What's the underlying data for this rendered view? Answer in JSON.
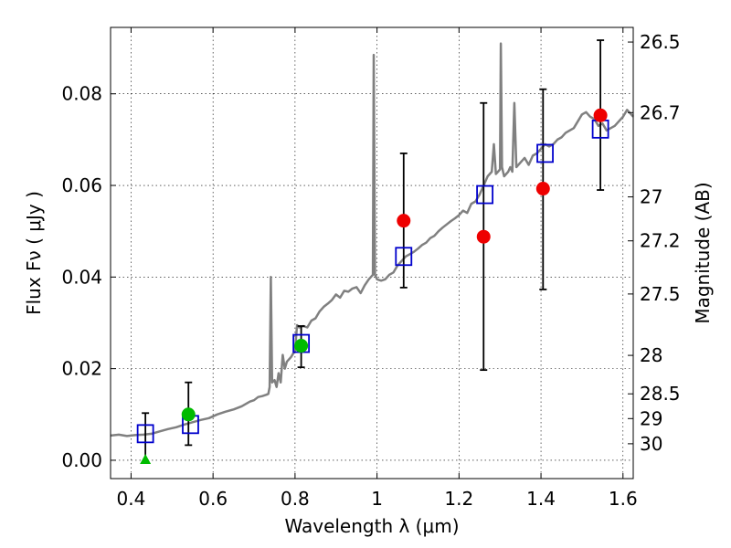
{
  "chart_data": {
    "type": "scatter",
    "xlabel": "Wavelength  λ (μm)",
    "ylabel": "Flux  Fν  ( μJy )",
    "ylabel_right": "Magnitude (AB)",
    "xlim": [
      0.35,
      1.625
    ],
    "ylim": [
      -0.004,
      0.0945
    ],
    "x_ticks": [
      0.4,
      0.6,
      0.8,
      1.0,
      1.2,
      1.4,
      1.6
    ],
    "x_tick_labels": [
      "0.4",
      "0.6",
      "0.8",
      "1",
      "1.2",
      "1.4",
      "1.6"
    ],
    "y_ticks": [
      0.0,
      0.02,
      0.04,
      0.06,
      0.08
    ],
    "y_tick_labels": [
      "0.00",
      "0.02",
      "0.04",
      "0.06",
      "0.08"
    ],
    "right_ticks": [
      {
        "label": "26.5",
        "flux": 0.0913
      },
      {
        "label": "26.7",
        "flux": 0.0759
      },
      {
        "label": "27",
        "flux": 0.0575
      },
      {
        "label": "27.2",
        "flux": 0.0479
      },
      {
        "label": "27.5",
        "flux": 0.0363
      },
      {
        "label": "28",
        "flux": 0.0229
      },
      {
        "label": "28.5",
        "flux": 0.0145
      },
      {
        "label": "29",
        "flux": 0.0091
      },
      {
        "label": "30",
        "flux": 0.0036
      }
    ],
    "grid": true,
    "colors": {
      "spectrum": "#808080",
      "model_box": "#0000cc",
      "red_point": "#ee0000",
      "green_point": "#00bb00",
      "errorbar": "#000000"
    },
    "spectrum": [
      [
        0.35,
        0.0054
      ],
      [
        0.37,
        0.0056
      ],
      [
        0.39,
        0.0053
      ],
      [
        0.41,
        0.0055
      ],
      [
        0.43,
        0.0056
      ],
      [
        0.45,
        0.0058
      ],
      [
        0.47,
        0.0063
      ],
      [
        0.49,
        0.0068
      ],
      [
        0.51,
        0.0072
      ],
      [
        0.53,
        0.0078
      ],
      [
        0.55,
        0.0083
      ],
      [
        0.57,
        0.0088
      ],
      [
        0.59,
        0.0092
      ],
      [
        0.61,
        0.01
      ],
      [
        0.63,
        0.0106
      ],
      [
        0.65,
        0.0111
      ],
      [
        0.67,
        0.0118
      ],
      [
        0.69,
        0.0128
      ],
      [
        0.7,
        0.0131
      ],
      [
        0.71,
        0.0138
      ],
      [
        0.72,
        0.014
      ],
      [
        0.73,
        0.0143
      ],
      [
        0.735,
        0.0145
      ],
      [
        0.738,
        0.016
      ],
      [
        0.741,
        0.04
      ],
      [
        0.744,
        0.017
      ],
      [
        0.75,
        0.0175
      ],
      [
        0.755,
        0.016
      ],
      [
        0.76,
        0.019
      ],
      [
        0.765,
        0.017
      ],
      [
        0.77,
        0.023
      ],
      [
        0.775,
        0.02
      ],
      [
        0.78,
        0.0215
      ],
      [
        0.79,
        0.0225
      ],
      [
        0.8,
        0.024
      ],
      [
        0.805,
        0.0295
      ],
      [
        0.81,
        0.029
      ],
      [
        0.82,
        0.0293
      ],
      [
        0.83,
        0.029
      ],
      [
        0.84,
        0.0305
      ],
      [
        0.85,
        0.031
      ],
      [
        0.86,
        0.0325
      ],
      [
        0.87,
        0.0335
      ],
      [
        0.88,
        0.0342
      ],
      [
        0.89,
        0.035
      ],
      [
        0.9,
        0.0362
      ],
      [
        0.91,
        0.0355
      ],
      [
        0.92,
        0.037
      ],
      [
        0.93,
        0.0368
      ],
      [
        0.94,
        0.0375
      ],
      [
        0.95,
        0.0378
      ],
      [
        0.96,
        0.0365
      ],
      [
        0.97,
        0.0382
      ],
      [
        0.98,
        0.0395
      ],
      [
        0.985,
        0.04
      ],
      [
        0.99,
        0.0405
      ],
      [
        0.992,
        0.0885
      ],
      [
        0.995,
        0.0405
      ],
      [
        1.0,
        0.0395
      ],
      [
        1.01,
        0.0392
      ],
      [
        1.02,
        0.0395
      ],
      [
        1.03,
        0.0405
      ],
      [
        1.04,
        0.041
      ],
      [
        1.05,
        0.0425
      ],
      [
        1.06,
        0.0435
      ],
      [
        1.07,
        0.0445
      ],
      [
        1.08,
        0.045
      ],
      [
        1.09,
        0.0455
      ],
      [
        1.1,
        0.0462
      ],
      [
        1.11,
        0.047
      ],
      [
        1.12,
        0.0475
      ],
      [
        1.13,
        0.0485
      ],
      [
        1.14,
        0.049
      ],
      [
        1.15,
        0.05
      ],
      [
        1.16,
        0.0508
      ],
      [
        1.17,
        0.0515
      ],
      [
        1.18,
        0.0522
      ],
      [
        1.19,
        0.0528
      ],
      [
        1.2,
        0.0535
      ],
      [
        1.21,
        0.0545
      ],
      [
        1.22,
        0.054
      ],
      [
        1.23,
        0.056
      ],
      [
        1.24,
        0.0565
      ],
      [
        1.25,
        0.058
      ],
      [
        1.26,
        0.06
      ],
      [
        1.27,
        0.062
      ],
      [
        1.28,
        0.063
      ],
      [
        1.285,
        0.069
      ],
      [
        1.29,
        0.0625
      ],
      [
        1.295,
        0.063
      ],
      [
        1.3,
        0.0635
      ],
      [
        1.302,
        0.091
      ],
      [
        1.305,
        0.064
      ],
      [
        1.31,
        0.062
      ],
      [
        1.32,
        0.063
      ],
      [
        1.325,
        0.064
      ],
      [
        1.33,
        0.063
      ],
      [
        1.335,
        0.078
      ],
      [
        1.34,
        0.064
      ],
      [
        1.35,
        0.065
      ],
      [
        1.36,
        0.066
      ],
      [
        1.37,
        0.0645
      ],
      [
        1.38,
        0.0665
      ],
      [
        1.39,
        0.067
      ],
      [
        1.4,
        0.068
      ],
      [
        1.41,
        0.069
      ],
      [
        1.42,
        0.0685
      ],
      [
        1.43,
        0.069
      ],
      [
        1.44,
        0.07
      ],
      [
        1.45,
        0.0705
      ],
      [
        1.46,
        0.0715
      ],
      [
        1.47,
        0.072
      ],
      [
        1.48,
        0.0725
      ],
      [
        1.49,
        0.074
      ],
      [
        1.5,
        0.0755
      ],
      [
        1.51,
        0.076
      ],
      [
        1.52,
        0.075
      ],
      [
        1.53,
        0.0745
      ],
      [
        1.54,
        0.073
      ],
      [
        1.55,
        0.0735
      ],
      [
        1.56,
        0.072
      ],
      [
        1.57,
        0.0725
      ],
      [
        1.58,
        0.073
      ],
      [
        1.59,
        0.074
      ],
      [
        1.6,
        0.075
      ],
      [
        1.61,
        0.0765
      ],
      [
        1.62,
        0.0755
      ],
      [
        1.625,
        0.075
      ]
    ],
    "model_points": [
      {
        "x": 0.435,
        "y": 0.0058
      },
      {
        "x": 0.545,
        "y": 0.0078
      },
      {
        "x": 0.815,
        "y": 0.0255
      },
      {
        "x": 1.065,
        "y": 0.0445
      },
      {
        "x": 1.263,
        "y": 0.058
      },
      {
        "x": 1.41,
        "y": 0.067
      },
      {
        "x": 1.545,
        "y": 0.0723
      }
    ],
    "observed_points": [
      {
        "x": 0.435,
        "y": 0.0,
        "yerr_low": 0.0,
        "yerr_high": 0.0103,
        "color": "green",
        "marker": "triangle"
      },
      {
        "x": 0.54,
        "y": 0.01,
        "yerr_low": 0.0033,
        "yerr_high": 0.017,
        "color": "green",
        "marker": "circle"
      },
      {
        "x": 0.815,
        "y": 0.025,
        "yerr_low": 0.0203,
        "yerr_high": 0.0293,
        "color": "green",
        "marker": "circle"
      },
      {
        "x": 1.065,
        "y": 0.0523,
        "yerr_low": 0.0377,
        "yerr_high": 0.067,
        "color": "red",
        "marker": "circle"
      },
      {
        "x": 1.26,
        "y": 0.0488,
        "yerr_low": 0.0197,
        "yerr_high": 0.078,
        "color": "red",
        "marker": "circle"
      },
      {
        "x": 1.405,
        "y": 0.0593,
        "yerr_low": 0.0373,
        "yerr_high": 0.081,
        "color": "red",
        "marker": "circle"
      },
      {
        "x": 1.545,
        "y": 0.0753,
        "yerr_low": 0.059,
        "yerr_high": 0.0917,
        "color": "red",
        "marker": "circle"
      }
    ]
  }
}
